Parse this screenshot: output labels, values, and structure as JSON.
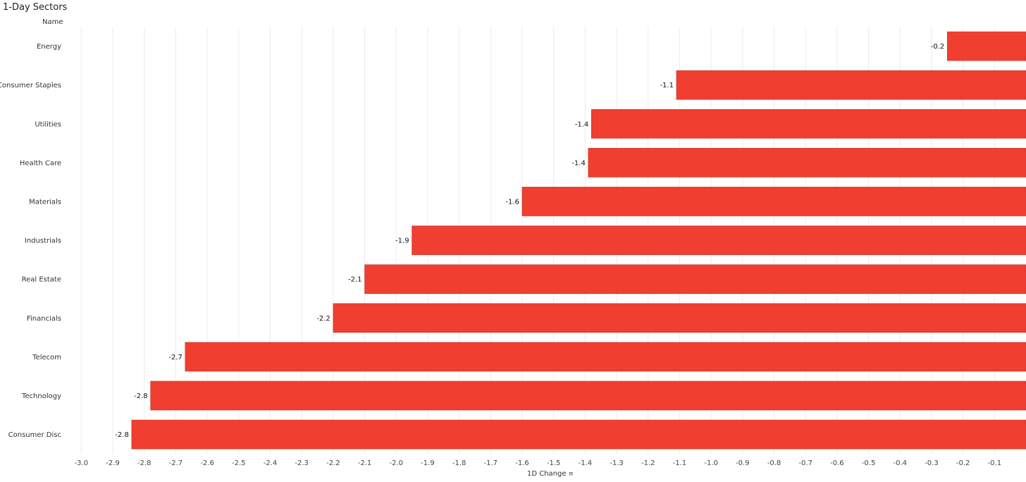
{
  "title": "1-Day Sectors",
  "row_header": "Name",
  "sort_icon": "sort-descending-icon",
  "chart_data": {
    "type": "bar",
    "orientation": "horizontal",
    "title": "1-Day Sectors",
    "xlabel": "1D Change",
    "ylabel": "Name",
    "categories": [
      "Energy",
      "Consumer Staples",
      "Utilities",
      "Health Care",
      "Materials",
      "Industrials",
      "Real Estate",
      "Financials",
      "Telecom",
      "Technology",
      "Consumer Disc"
    ],
    "values": [
      -0.25,
      -1.11,
      -1.38,
      -1.39,
      -1.6,
      -1.95,
      -2.1,
      -2.2,
      -2.67,
      -2.78,
      -2.84
    ],
    "data_labels": [
      "-0.2",
      "-1.1",
      "-1.4",
      "-1.4",
      "-1.6",
      "-1.9",
      "-2.1",
      "-2.2",
      "-2.7",
      "-2.8",
      "-2.8"
    ],
    "xlim": [
      -3.05,
      0
    ],
    "xticks": [
      -3.0,
      -2.9,
      -2.8,
      -2.7,
      -2.6,
      -2.5,
      -2.4,
      -2.3,
      -2.2,
      -2.1,
      -2.0,
      -1.9,
      -1.8,
      -1.7,
      -1.6,
      -1.5,
      -1.4,
      -1.3,
      -1.2,
      -1.1,
      -1.0,
      -0.9,
      -0.8,
      -0.7,
      -0.6,
      -0.5,
      -0.4,
      -0.3,
      -0.2,
      -0.1
    ],
    "xtick_labels": [
      "-3.0",
      "-2.9",
      "-2.8",
      "-2.7",
      "-2.6",
      "-2.5",
      "-2.4",
      "-2.3",
      "-2.2",
      "-2.1",
      "-2.0",
      "-1.9",
      "-1.8",
      "-1.7",
      "-1.6",
      "-1.5",
      "-1.4",
      "-1.3",
      "-1.2",
      "-1.1",
      "-1.0",
      "-0.9",
      "-0.8",
      "-0.7",
      "-0.6",
      "-0.5",
      "-0.4",
      "-0.3",
      "-0.2",
      "-0.1"
    ],
    "grid": "vertical",
    "bar_color": "#f03e30"
  }
}
